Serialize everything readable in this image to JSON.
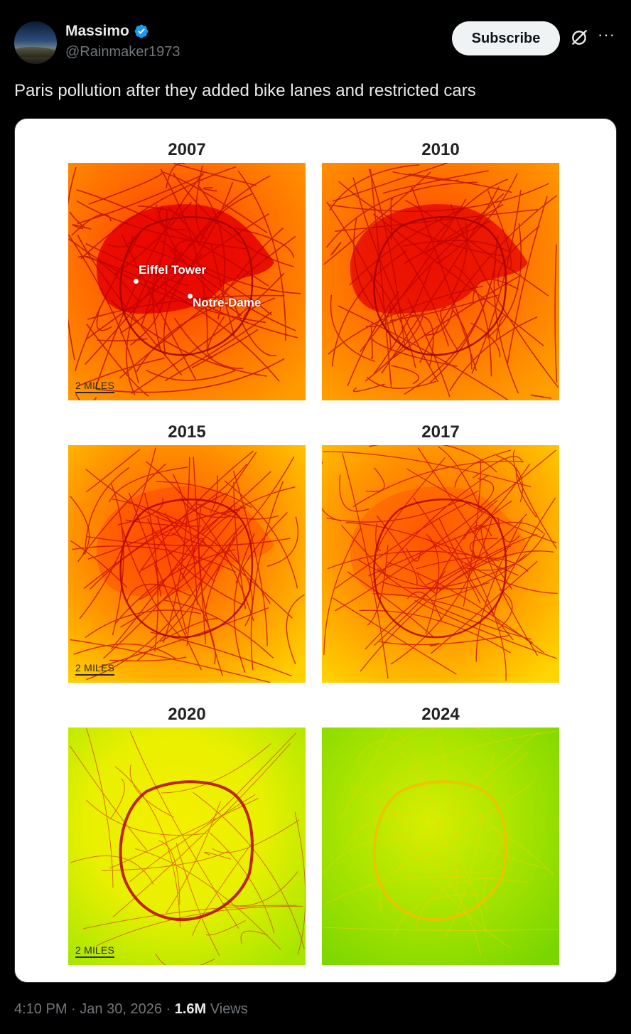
{
  "post": {
    "author_name": "Massimo",
    "handle": "@Rainmaker1973",
    "subscribe_label": "Subscribe",
    "text": "Paris pollution after they added bike lanes and restricted cars",
    "time": "4:10 PM",
    "date": "Jan 30, 2026",
    "views_count": "1.6M",
    "views_label": "Views",
    "separator": "·"
  },
  "icons": {
    "verified": "verified-badge-icon",
    "grok": "grok-icon",
    "more": "more-icon"
  },
  "colors": {
    "background": "#000000",
    "verified_blue": "#1d9bf0",
    "subscribe_bg": "#eff3f4",
    "secondary_text": "#71767b"
  },
  "figure": {
    "panels": [
      {
        "year": "2007",
        "scale_label": "2 MILES",
        "poi": [
          "Eiffel Tower",
          "Notre-Dame"
        ]
      },
      {
        "year": "2010",
        "scale_label": "",
        "poi": []
      },
      {
        "year": "2015",
        "scale_label": "2 MILES",
        "poi": []
      },
      {
        "year": "2017",
        "scale_label": "",
        "poi": []
      },
      {
        "year": "2020",
        "scale_label": "2 MILES",
        "poi": []
      },
      {
        "year": "2024",
        "scale_label": "",
        "poi": []
      }
    ]
  }
}
